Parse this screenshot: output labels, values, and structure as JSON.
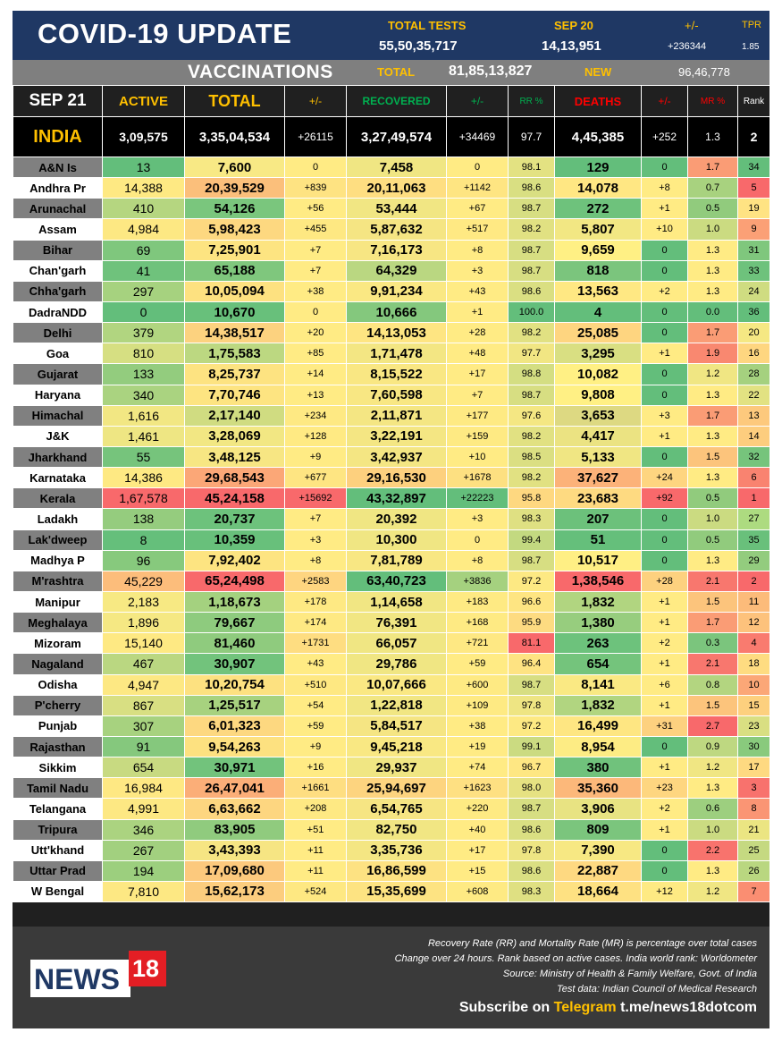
{
  "header": {
    "title": "COVID-19 UPDATE",
    "total_tests_label": "TOTAL TESTS",
    "total_tests_value": "55,50,35,717",
    "date_label": "SEP 20",
    "date_value": "14,13,951",
    "change_label": "+/-",
    "change_value": "+236344",
    "tpr_label": "TPR",
    "tpr_value": "1.85"
  },
  "vaccinations": {
    "title": "VACCINATIONS",
    "total_label": "TOTAL",
    "total_value": "81,85,13,827",
    "new_label": "NEW",
    "new_value": "96,46,778"
  },
  "columns": {
    "date": "SEP 21",
    "active": "ACTIVE",
    "total": "TOTAL",
    "change": "+/-",
    "recovered": "RECOVERED",
    "rec_change": "+/-",
    "rr": "RR %",
    "deaths": "DEATHS",
    "death_change": "+/-",
    "mr": "MR %",
    "rank": "Rank"
  },
  "india": {
    "name": "INDIA",
    "active": "3,09,575",
    "total": "3,35,04,534",
    "change": "+26115",
    "recovered": "3,27,49,574",
    "rec_change": "+34469",
    "rr": "97.7",
    "deaths": "4,45,385",
    "death_change": "+252",
    "mr": "1.3",
    "rank": "2"
  },
  "rows": [
    {
      "name": "A&N Is",
      "active": "13",
      "total": "7,600",
      "change": "0",
      "recovered": "7,458",
      "rec_change": "0",
      "rr": "98.1",
      "deaths": "129",
      "death_change": "0",
      "mr": "1.7",
      "rank": "34",
      "c": [
        "#63be7b",
        "#f8e985",
        "#ffeb84",
        "#f0e683",
        "#ffeb84",
        "#e3e282",
        "#63be7b",
        "#63be7b",
        "#fa9c75",
        "#63be7b"
      ]
    },
    {
      "name": "Andhra Pr",
      "active": "14,388",
      "total": "20,39,529",
      "change": "+839",
      "recovered": "20,11,063",
      "rec_change": "+1142",
      "rr": "98.6",
      "deaths": "14,078",
      "death_change": "+8",
      "mr": "0.7",
      "rank": "5",
      "c": [
        "#fee983",
        "#fbbf7b",
        "#fee382",
        "#fede81",
        "#fee582",
        "#d9df82",
        "#ffe783",
        "#ffeb84",
        "#a8d27f",
        "#f8696b"
      ]
    },
    {
      "name": "Arunachal",
      "active": "410",
      "total": "54,126",
      "change": "+56",
      "recovered": "53,444",
      "rec_change": "+67",
      "rr": "98.7",
      "deaths": "272",
      "death_change": "+1",
      "mr": "0.5",
      "rank": "19",
      "c": [
        "#b5d680",
        "#7ac67d",
        "#ffeb84",
        "#f1e683",
        "#ffeb84",
        "#d7de82",
        "#6ec27c",
        "#ffeb84",
        "#91cb7d",
        "#ffe383"
      ]
    },
    {
      "name": "Assam",
      "active": "4,984",
      "total": "5,98,423",
      "change": "+455",
      "recovered": "5,87,632",
      "rec_change": "+517",
      "rr": "98.2",
      "deaths": "5,807",
      "death_change": "+10",
      "mr": "1.0",
      "rank": "9",
      "c": [
        "#fde883",
        "#fdd880",
        "#fee882",
        "#f5e583",
        "#ffe983",
        "#e1e182",
        "#f2e783",
        "#ffeb84",
        "#cbdb81",
        "#fba076"
      ]
    },
    {
      "name": "Bihar",
      "active": "69",
      "total": "7,25,901",
      "change": "+7",
      "recovered": "7,16,173",
      "rec_change": "+8",
      "rr": "98.7",
      "deaths": "9,659",
      "death_change": "0",
      "mr": "1.3",
      "rank": "31",
      "c": [
        "#7fc77d",
        "#fde481",
        "#ffeb84",
        "#f7e683",
        "#ffeb84",
        "#d7de82",
        "#fff084",
        "#63be7b",
        "#ffeb84",
        "#7fc77d"
      ]
    },
    {
      "name": "Chan'garh",
      "active": "41",
      "total": "65,188",
      "change": "+7",
      "recovered": "64,329",
      "rec_change": "+3",
      "rr": "98.7",
      "deaths": "818",
      "death_change": "0",
      "mr": "1.3",
      "rank": "33",
      "c": [
        "#6fc27c",
        "#7fc77d",
        "#ffeb84",
        "#bad781",
        "#ffeb84",
        "#d7de82",
        "#7bc57d",
        "#63be7b",
        "#ffeb84",
        "#6ec27c"
      ]
    },
    {
      "name": "Chha'garh",
      "active": "297",
      "total": "10,05,094",
      "change": "+38",
      "recovered": "9,91,234",
      "rec_change": "+43",
      "rr": "98.6",
      "deaths": "13,563",
      "death_change": "+2",
      "mr": "1.3",
      "rank": "24",
      "c": [
        "#a6d27f",
        "#fde180",
        "#ffeb84",
        "#fae883",
        "#ffeb84",
        "#dadf82",
        "#ffe883",
        "#ffeb84",
        "#ffeb84",
        "#cfdc81"
      ]
    },
    {
      "name": "DadraNDD",
      "active": "0",
      "total": "10,670",
      "change": "0",
      "recovered": "10,666",
      "rec_change": "+1",
      "rr": "100.0",
      "deaths": "4",
      "death_change": "0",
      "mr": "0.0",
      "rank": "36",
      "c": [
        "#63be7b",
        "#68c07b",
        "#ffeb84",
        "#84c87d",
        "#ffeb84",
        "#63be7b",
        "#63be7b",
        "#63be7b",
        "#63be7b",
        "#63be7b"
      ]
    },
    {
      "name": "Delhi",
      "active": "379",
      "total": "14,38,517",
      "change": "+20",
      "recovered": "14,13,053",
      "rec_change": "+28",
      "rr": "98.2",
      "deaths": "25,085",
      "death_change": "0",
      "mr": "1.7",
      "rank": "20",
      "c": [
        "#b1d580",
        "#fcd27f",
        "#ffeb84",
        "#fee582",
        "#ffeb84",
        "#e1e182",
        "#fed580",
        "#63be7b",
        "#fa9c75",
        "#f5e883"
      ]
    },
    {
      "name": "Goa",
      "active": "810",
      "total": "1,75,583",
      "change": "+85",
      "recovered": "1,71,478",
      "rec_change": "+48",
      "rr": "97.7",
      "deaths": "3,295",
      "death_change": "+1",
      "mr": "1.9",
      "rank": "16",
      "c": [
        "#d6df82",
        "#bcd881",
        "#ffeb84",
        "#f3e683",
        "#ffeb84",
        "#f1e683",
        "#d9df82",
        "#ffeb84",
        "#f98870",
        "#fed680"
      ]
    },
    {
      "name": "Gujarat",
      "active": "133",
      "total": "8,25,737",
      "change": "+14",
      "recovered": "8,15,522",
      "rec_change": "+17",
      "rr": "98.8",
      "deaths": "10,082",
      "death_change": "0",
      "mr": "1.2",
      "rank": "28",
      "c": [
        "#93cc7e",
        "#fde381",
        "#ffeb84",
        "#f9e783",
        "#ffeb84",
        "#d4de82",
        "#fff084",
        "#63be7b",
        "#f0e683",
        "#a5d17f"
      ]
    },
    {
      "name": "Haryana",
      "active": "340",
      "total": "7,70,746",
      "change": "+13",
      "recovered": "7,60,598",
      "rec_change": "+7",
      "rr": "98.7",
      "deaths": "9,808",
      "death_change": "0",
      "mr": "1.3",
      "rank": "22",
      "c": [
        "#aad380",
        "#fde481",
        "#ffeb84",
        "#f8e783",
        "#ffeb84",
        "#d7de82",
        "#fff084",
        "#63be7b",
        "#ffeb84",
        "#e2e282"
      ]
    },
    {
      "name": "Himachal",
      "active": "1,616",
      "total": "2,17,140",
      "change": "+234",
      "recovered": "2,11,871",
      "rec_change": "+177",
      "rr": "97.6",
      "deaths": "3,653",
      "death_change": "+3",
      "mr": "1.7",
      "rank": "13",
      "c": [
        "#f2e783",
        "#d0dc81",
        "#fee983",
        "#f4e683",
        "#feea83",
        "#f4e783",
        "#ddd982",
        "#ffeb84",
        "#fa9c75",
        "#fdc97d"
      ]
    },
    {
      "name": "J&K",
      "active": "1,461",
      "total": "3,28,069",
      "change": "+128",
      "recovered": "3,22,191",
      "rec_change": "+159",
      "rr": "98.2",
      "deaths": "4,417",
      "death_change": "+1",
      "mr": "1.3",
      "rank": "14",
      "c": [
        "#eee683",
        "#f2e783",
        "#ffea83",
        "#f4e683",
        "#feea83",
        "#e1e182",
        "#ebe382",
        "#ffeb84",
        "#ffeb84",
        "#fdcd7e"
      ]
    },
    {
      "name": "Jharkhand",
      "active": "55",
      "total": "3,48,125",
      "change": "+9",
      "recovered": "3,42,937",
      "rec_change": "+10",
      "rr": "98.5",
      "deaths": "5,133",
      "death_change": "0",
      "mr": "1.5",
      "rank": "32",
      "c": [
        "#76c47c",
        "#f7e683",
        "#ffeb84",
        "#f4e683",
        "#ffeb84",
        "#dbdf82",
        "#f0e683",
        "#63be7b",
        "#fcc47c",
        "#76c47c"
      ]
    },
    {
      "name": "Karnataka",
      "active": "14,386",
      "total": "29,68,543",
      "change": "+677",
      "recovered": "29,16,530",
      "rec_change": "+1678",
      "rr": "98.2",
      "deaths": "37,627",
      "death_change": "+24",
      "mr": "1.3",
      "rank": "6",
      "c": [
        "#fee983",
        "#fba777",
        "#fee582",
        "#fdd07e",
        "#fde081",
        "#e1e182",
        "#fcb279",
        "#fed580",
        "#ffeb84",
        "#f98370"
      ]
    },
    {
      "name": "Kerala",
      "active": "1,67,578",
      "total": "45,24,158",
      "change": "+15692",
      "recovered": "43,32,897",
      "rec_change": "+22223",
      "rr": "95.8",
      "deaths": "23,683",
      "death_change": "+92",
      "mr": "0.5",
      "rank": "1",
      "c": [
        "#f8696b",
        "#f8696b",
        "#f8696b",
        "#63be7b",
        "#63be7b",
        "#fed880",
        "#feda81",
        "#f8696b",
        "#91cb7d",
        "#f8696b"
      ]
    },
    {
      "name": "Ladakh",
      "active": "138",
      "total": "20,737",
      "change": "+7",
      "recovered": "20,392",
      "rec_change": "+3",
      "rr": "98.3",
      "deaths": "207",
      "death_change": "0",
      "mr": "1.0",
      "rank": "27",
      "c": [
        "#95cc7e",
        "#6dc27c",
        "#ffeb84",
        "#f0e683",
        "#ffeb84",
        "#dfe082",
        "#6cc17b",
        "#63be7b",
        "#cbdb81",
        "#addb80"
      ]
    },
    {
      "name": "Lak'dweep",
      "active": "8",
      "total": "10,359",
      "change": "+3",
      "recovered": "10,300",
      "rec_change": "0",
      "rr": "99.4",
      "deaths": "51",
      "death_change": "0",
      "mr": "0.5",
      "rank": "35",
      "c": [
        "#65bf7b",
        "#68c07b",
        "#ffeb84",
        "#f0e683",
        "#ffeb84",
        "#c3d980",
        "#65bf7b",
        "#63be7b",
        "#91cb7d",
        "#69c07b"
      ]
    },
    {
      "name": "Madhya P",
      "active": "96",
      "total": "7,92,402",
      "change": "+8",
      "recovered": "7,81,789",
      "rec_change": "+8",
      "rr": "98.7",
      "deaths": "10,517",
      "death_change": "0",
      "mr": "1.3",
      "rank": "29",
      "c": [
        "#87c97d",
        "#fde481",
        "#ffeb84",
        "#f8e783",
        "#ffeb84",
        "#d7de82",
        "#ffef84",
        "#63be7b",
        "#ffeb84",
        "#93cc7e"
      ]
    },
    {
      "name": "M'rashtra",
      "active": "45,229",
      "total": "65,24,498",
      "change": "+2583",
      "recovered": "63,40,723",
      "rec_change": "+3836",
      "rr": "97.2",
      "deaths": "1,38,546",
      "death_change": "+28",
      "mr": "2.1",
      "rank": "2",
      "c": [
        "#fcbd7b",
        "#f8696b",
        "#fed580",
        "#63be7b",
        "#a5d17f",
        "#fde983",
        "#f8696b",
        "#fdd17f",
        "#f8776e",
        "#f8696b"
      ]
    },
    {
      "name": "Manipur",
      "active": "2,183",
      "total": "1,18,673",
      "change": "+178",
      "recovered": "1,14,658",
      "rec_change": "+183",
      "rr": "96.6",
      "deaths": "1,832",
      "death_change": "+1",
      "mr": "1.5",
      "rank": "11",
      "c": [
        "#f7e983",
        "#a4d17f",
        "#fee983",
        "#f1e683",
        "#feea83",
        "#fee582",
        "#b1d580",
        "#ffeb84",
        "#fcc47c",
        "#fcbb7a"
      ]
    },
    {
      "name": "Meghalaya",
      "active": "1,896",
      "total": "79,667",
      "change": "+174",
      "recovered": "76,391",
      "rec_change": "+168",
      "rr": "95.9",
      "deaths": "1,380",
      "death_change": "+1",
      "mr": "1.7",
      "rank": "12",
      "c": [
        "#f5e883",
        "#8ecb7e",
        "#fee983",
        "#f1e683",
        "#feea83",
        "#fddb81",
        "#97cd7e",
        "#ffeb84",
        "#fa9c75",
        "#fdc27c"
      ]
    },
    {
      "name": "Mizoram",
      "active": "15,140",
      "total": "81,460",
      "change": "+1731",
      "recovered": "66,057",
      "rec_change": "+721",
      "rr": "81.1",
      "deaths": "263",
      "death_change": "+2",
      "mr": "0.3",
      "rank": "4",
      "c": [
        "#fee983",
        "#8fcb7e",
        "#fedd81",
        "#f0e683",
        "#fee883",
        "#f8696b",
        "#6dc27c",
        "#ffeb84",
        "#7bc57d",
        "#f97b6f"
      ]
    },
    {
      "name": "Nagaland",
      "active": "467",
      "total": "30,907",
      "change": "+43",
      "recovered": "29,786",
      "rec_change": "+59",
      "rr": "96.4",
      "deaths": "654",
      "death_change": "+1",
      "mr": "2.1",
      "rank": "18",
      "c": [
        "#bad781",
        "#72c37c",
        "#ffeb84",
        "#f0e683",
        "#ffeb84",
        "#fee382",
        "#74c47c",
        "#ffeb84",
        "#f8776e",
        "#fedc81"
      ]
    },
    {
      "name": "Odisha",
      "active": "4,947",
      "total": "10,20,754",
      "change": "+510",
      "recovered": "10,07,666",
      "rec_change": "+600",
      "rr": "98.7",
      "deaths": "8,141",
      "death_change": "+6",
      "mr": "0.8",
      "rank": "10",
      "c": [
        "#fde883",
        "#fde180",
        "#fee882",
        "#fae883",
        "#feea83",
        "#d7de82",
        "#fae983",
        "#ffeb84",
        "#b3d580",
        "#fba777"
      ]
    },
    {
      "name": "P'cherry",
      "active": "867",
      "total": "1,25,517",
      "change": "+54",
      "recovered": "1,22,818",
      "rec_change": "+109",
      "rr": "97.8",
      "deaths": "1,832",
      "death_change": "+1",
      "mr": "1.5",
      "rank": "15",
      "c": [
        "#d8df82",
        "#a7d27f",
        "#ffeb84",
        "#f1e683",
        "#feea83",
        "#eee583",
        "#b1d580",
        "#ffeb84",
        "#fcc47c",
        "#fdd07e"
      ]
    },
    {
      "name": "Punjab",
      "active": "307",
      "total": "6,01,323",
      "change": "+59",
      "recovered": "5,84,517",
      "rec_change": "+38",
      "rr": "97.2",
      "deaths": "16,499",
      "death_change": "+31",
      "mr": "2.7",
      "rank": "23",
      "c": [
        "#a7d27f",
        "#fdd880",
        "#ffeb84",
        "#f5e583",
        "#ffeb84",
        "#fde983",
        "#fee682",
        "#fdd17f",
        "#f8696b",
        "#d9df82"
      ]
    },
    {
      "name": "Rajasthan",
      "active": "91",
      "total": "9,54,263",
      "change": "+9",
      "recovered": "9,45,218",
      "rec_change": "+19",
      "rr": "99.1",
      "deaths": "8,954",
      "death_change": "0",
      "mr": "0.9",
      "rank": "30",
      "c": [
        "#85c87d",
        "#fde180",
        "#ffeb84",
        "#f9e883",
        "#ffeb84",
        "#cbdb81",
        "#fdec84",
        "#63be7b",
        "#bed881",
        "#89ca7d"
      ]
    },
    {
      "name": "Sikkim",
      "active": "654",
      "total": "30,971",
      "change": "+16",
      "recovered": "29,937",
      "rec_change": "+74",
      "rr": "96.7",
      "deaths": "380",
      "death_change": "+1",
      "mr": "1.2",
      "rank": "17",
      "c": [
        "#c8da81",
        "#72c37c",
        "#ffeb84",
        "#f0e683",
        "#ffeb84",
        "#fee783",
        "#70c27c",
        "#ffeb84",
        "#f0e683",
        "#fed981"
      ]
    },
    {
      "name": "Tamil Nadu",
      "active": "16,984",
      "total": "26,47,041",
      "change": "+1661",
      "recovered": "25,94,697",
      "rec_change": "+1623",
      "rr": "98.0",
      "deaths": "35,360",
      "death_change": "+23",
      "mr": "1.3",
      "rank": "3",
      "c": [
        "#fee883",
        "#fbae78",
        "#fede81",
        "#fdd47f",
        "#fee082",
        "#e6e282",
        "#fcb87a",
        "#fed680",
        "#ffeb84",
        "#f8726d"
      ]
    },
    {
      "name": "Telangana",
      "active": "4,991",
      "total": "6,63,662",
      "change": "+208",
      "recovered": "6,54,765",
      "rec_change": "+220",
      "rr": "98.7",
      "deaths": "3,906",
      "death_change": "+2",
      "mr": "0.6",
      "rank": "8",
      "c": [
        "#fde883",
        "#fdd680",
        "#fee983",
        "#f6e583",
        "#feea83",
        "#d7de82",
        "#e8e382",
        "#ffeb84",
        "#9dcf7f",
        "#fa9574"
      ]
    },
    {
      "name": "Tripura",
      "active": "346",
      "total": "83,905",
      "change": "+51",
      "recovered": "82,750",
      "rec_change": "+40",
      "rr": "98.6",
      "deaths": "809",
      "death_change": "+1",
      "mr": "1.0",
      "rank": "21",
      "c": [
        "#abd380",
        "#90cb7e",
        "#ffeb84",
        "#f1e683",
        "#ffeb84",
        "#dadf82",
        "#7bc57d",
        "#ffeb84",
        "#cbdb81",
        "#ebe582"
      ]
    },
    {
      "name": "Utt'khand",
      "active": "267",
      "total": "3,43,393",
      "change": "+11",
      "recovered": "3,35,736",
      "rec_change": "+17",
      "rr": "97.8",
      "deaths": "7,390",
      "death_change": "0",
      "mr": "2.2",
      "rank": "25",
      "c": [
        "#a2d07f",
        "#f6e583",
        "#ffeb84",
        "#f4e683",
        "#ffeb84",
        "#eee583",
        "#f7e883",
        "#63be7b",
        "#f8736d",
        "#c5d981"
      ]
    },
    {
      "name": "Uttar Prad",
      "active": "194",
      "total": "17,09,680",
      "change": "+11",
      "recovered": "16,86,599",
      "rec_change": "+15",
      "rr": "98.6",
      "deaths": "22,887",
      "death_change": "0",
      "mr": "1.3",
      "rank": "26",
      "c": [
        "#9ccf7e",
        "#fcc97d",
        "#ffeb84",
        "#fde282",
        "#ffeb84",
        "#dadf82",
        "#fed981",
        "#63be7b",
        "#ffeb84",
        "#b9d780"
      ]
    },
    {
      "name": "W Bengal",
      "active": "7,810",
      "total": "15,62,173",
      "change": "+524",
      "recovered": "15,35,699",
      "rec_change": "+608",
      "rr": "98.3",
      "deaths": "18,664",
      "death_change": "+12",
      "mr": "1.2",
      "rank": "7",
      "c": [
        "#fde883",
        "#fccd7e",
        "#fee882",
        "#fde382",
        "#feea83",
        "#dfe082",
        "#fee182",
        "#feea83",
        "#f0e683",
        "#fa8e72"
      ]
    }
  ],
  "footer": {
    "logo_news": "NEWS",
    "logo_18": "18",
    "note1": "Recovery Rate (RR) and Mortality Rate (MR) is percentage over total cases",
    "note2": "Change over 24 hours. Rank based on active cases. India world rank: Worldometer",
    "note3": "Source: Ministry of Health & Family Welfare, Govt. of India",
    "note4": "Test data: Indian Council of Medical Research",
    "subscribe_prefix": "Subscribe on",
    "subscribe_channel": "Telegram",
    "subscribe_link": "t.me/news18dotcom"
  },
  "colors": {
    "header_bg": "#1f3864",
    "label_gold": "#ffc000",
    "recovered_green": "#00b050",
    "deaths_red": "#ff0000",
    "name_gray": "#808080"
  }
}
